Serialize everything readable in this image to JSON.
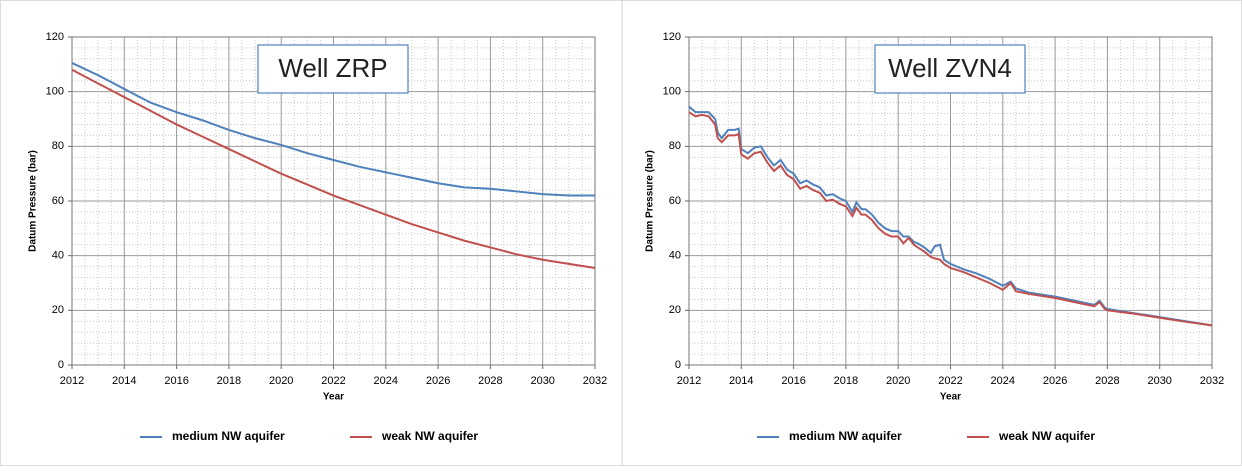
{
  "chart_data": [
    {
      "type": "line",
      "title": "Well ZRP",
      "xlabel": "Year",
      "ylabel": "Datum Pressure (bar)",
      "x": [
        2012,
        2013,
        2014,
        2015,
        2016,
        2017,
        2018,
        2019,
        2020,
        2021,
        2022,
        2023,
        2024,
        2025,
        2026,
        2027,
        2028,
        2029,
        2030,
        2031,
        2032
      ],
      "series": [
        {
          "name": "medium NW aquifer",
          "color": "#4f81bd",
          "values": [
            110.5,
            106,
            101,
            96,
            92.5,
            89.5,
            86,
            83,
            80.5,
            77.5,
            75,
            72.5,
            70.5,
            68.5,
            66.5,
            65,
            64.5,
            63.5,
            62.5,
            62,
            62
          ]
        },
        {
          "name": "weak NW aquifer",
          "color": "#c0504d",
          "values": [
            108,
            103,
            98,
            93,
            88,
            83.5,
            79,
            74.5,
            70,
            66,
            62,
            58.5,
            55,
            51.5,
            48.5,
            45.5,
            43,
            40.5,
            38.5,
            37,
            35.5
          ]
        }
      ],
      "xlim": [
        2012,
        2032
      ],
      "xticks": [
        2012,
        2014,
        2016,
        2018,
        2020,
        2022,
        2024,
        2026,
        2028,
        2030,
        2032
      ],
      "ylim": [
        0,
        120
      ],
      "yticks": [
        0,
        20,
        40,
        60,
        80,
        100,
        120
      ],
      "grid": true,
      "legend": "bottom"
    },
    {
      "type": "line",
      "title": "Well ZVN4",
      "xlabel": "Year",
      "ylabel": "Datum Pressure (bar)",
      "x": [
        2012,
        2012.25,
        2012.5,
        2012.75,
        2013,
        2013.1,
        2013.25,
        2013.5,
        2013.75,
        2013.9,
        2014,
        2014.25,
        2014.5,
        2014.75,
        2015,
        2015.25,
        2015.5,
        2015.75,
        2016,
        2016.25,
        2016.5,
        2016.75,
        2017,
        2017.25,
        2017.5,
        2017.75,
        2018,
        2018.25,
        2018.4,
        2018.6,
        2018.75,
        2019,
        2019.25,
        2019.5,
        2019.75,
        2020,
        2020.2,
        2020.4,
        2020.6,
        2020.75,
        2021,
        2021.25,
        2021.4,
        2021.6,
        2021.75,
        2022,
        2022.5,
        2023,
        2023.5,
        2024,
        2024.3,
        2024.5,
        2025,
        2026,
        2027,
        2027.5,
        2027.7,
        2027.9,
        2028,
        2029,
        2030,
        2031,
        2032
      ],
      "series": [
        {
          "name": "medium NW aquifer",
          "color": "#4f81bd",
          "values": [
            94.5,
            92.5,
            92.5,
            92.5,
            90,
            85,
            83,
            86,
            86,
            86.5,
            79,
            77.5,
            79.5,
            80,
            76,
            73,
            75,
            71.5,
            70,
            66.5,
            67.5,
            66,
            65,
            62,
            62.5,
            61,
            60,
            56,
            59.5,
            57,
            57,
            55,
            52,
            50,
            49,
            49,
            47,
            47,
            45,
            44.5,
            43,
            41,
            43.5,
            44,
            38.5,
            37,
            35,
            33.5,
            31.5,
            29,
            30.5,
            28,
            26.5,
            25,
            23,
            22,
            23.5,
            21,
            20.5,
            19,
            17.5,
            16,
            14.5
          ]
        },
        {
          "name": "weak NW aquifer",
          "color": "#c0504d",
          "values": [
            92.5,
            91,
            91.5,
            91,
            88,
            83,
            81.5,
            84,
            84,
            84.5,
            77,
            75.5,
            77.5,
            78,
            74,
            71,
            73,
            69.5,
            68,
            64.5,
            65.5,
            64,
            63,
            60,
            60.5,
            59,
            58,
            54.5,
            57.5,
            55,
            55,
            53,
            50,
            48,
            47,
            47,
            44.5,
            46.5,
            44,
            43,
            41.5,
            39.5,
            39,
            38.5,
            37,
            35.5,
            34,
            32,
            30,
            27.5,
            30,
            27,
            26,
            24.5,
            22.5,
            21.5,
            23,
            20.5,
            20,
            18.8,
            17.3,
            15.8,
            14.5
          ]
        }
      ],
      "xlim": [
        2012,
        2032
      ],
      "xticks": [
        2012,
        2014,
        2016,
        2018,
        2020,
        2022,
        2024,
        2026,
        2028,
        2030,
        2032
      ],
      "ylim": [
        0,
        120
      ],
      "yticks": [
        0,
        20,
        40,
        60,
        80,
        100,
        120
      ],
      "grid": true,
      "legend": "bottom"
    }
  ]
}
